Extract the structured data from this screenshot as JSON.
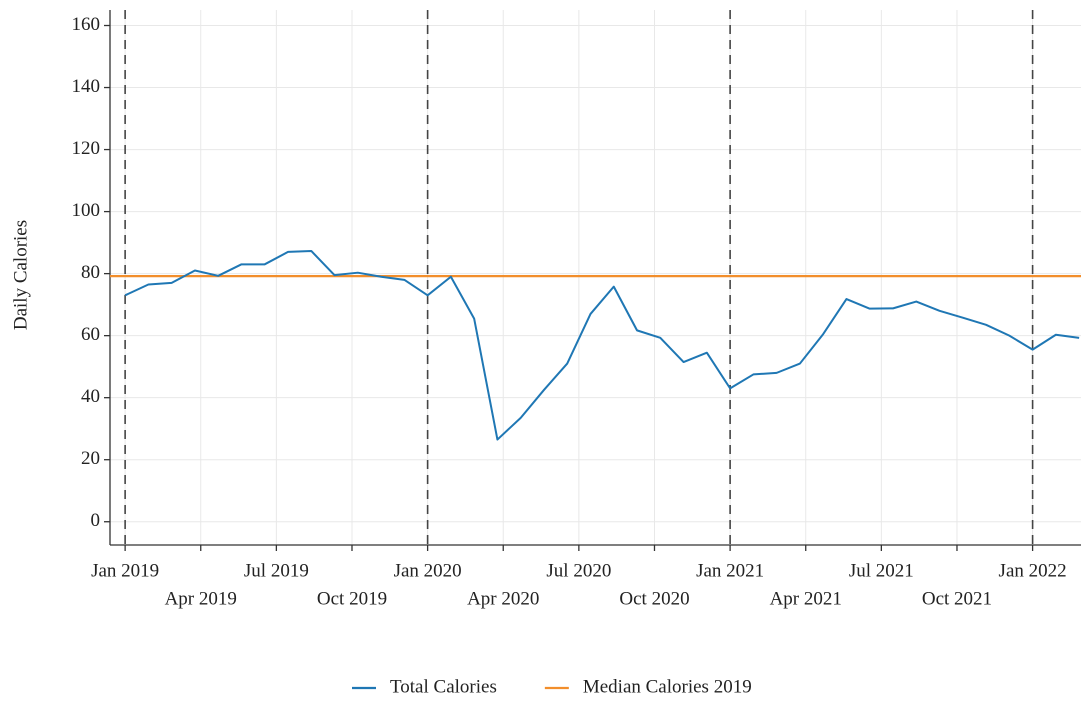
{
  "chart_data": {
    "type": "line",
    "y_label": "Daily Calories",
    "x": [
      2019.0,
      2019.0769,
      2019.1538,
      2019.2308,
      2019.3077,
      2019.3846,
      2019.4615,
      2019.5385,
      2019.6154,
      2019.6923,
      2019.7692,
      2019.8462,
      2019.9231,
      2020.0,
      2020.0769,
      2020.1538,
      2020.2308,
      2020.3077,
      2020.3846,
      2020.4615,
      2020.5385,
      2020.6154,
      2020.6923,
      2020.7692,
      2020.8462,
      2020.9231,
      2021.0,
      2021.0769,
      2021.1538,
      2021.2308,
      2021.3077,
      2021.3846,
      2021.4615,
      2021.5385,
      2021.6154,
      2021.6923,
      2021.7692,
      2021.8462,
      2021.9231,
      2022.0,
      2022.0769,
      2022.1538
    ],
    "series": [
      {
        "name": "Total Calories",
        "color": "#1f77b4",
        "values": [
          73,
          76.5,
          77,
          81,
          79.3,
          83,
          83,
          87,
          87.3,
          79.5,
          80.3,
          79,
          78,
          73,
          79,
          65.5,
          26.5,
          33.5,
          42.5,
          51,
          67,
          75.8,
          61.7,
          59.3,
          51.5,
          54.5,
          43,
          47.5,
          48,
          51,
          60.5,
          71.8,
          68.7,
          68.8,
          71,
          68,
          65.8,
          63.5,
          60,
          55.5,
          60.3,
          59.3
        ]
      }
    ],
    "reference_lines": [
      {
        "name": "Median Calories 2019",
        "color": "#f28e2b",
        "value": 79.2
      }
    ],
    "vlines": [
      2019,
      2020,
      2021,
      2022
    ],
    "xlim": [
      2018.95,
      2022.16
    ],
    "ylim": [
      -7.5,
      165
    ],
    "xticks": [
      {
        "value": 2019,
        "label": "Jan 2019"
      },
      {
        "value": 2019.25,
        "label": "Apr 2019"
      },
      {
        "value": 2019.5,
        "label": "Jul 2019"
      },
      {
        "value": 2019.75,
        "label": "Oct 2019"
      },
      {
        "value": 2020,
        "label": "Jan 2020"
      },
      {
        "value": 2020.25,
        "label": "Apr 2020"
      },
      {
        "value": 2020.5,
        "label": "Jul 2020"
      },
      {
        "value": 2020.75,
        "label": "Oct 2020"
      },
      {
        "value": 2021,
        "label": "Jan 2021"
      },
      {
        "value": 2021.25,
        "label": "Apr 2021"
      },
      {
        "value": 2021.5,
        "label": "Jul 2021"
      },
      {
        "value": 2021.75,
        "label": "Oct 2021"
      },
      {
        "value": 2022,
        "label": "Jan 2022"
      }
    ],
    "yticks": [
      0,
      20,
      40,
      60,
      80,
      100,
      120,
      140,
      160
    ],
    "grid": true,
    "legend": "bottom"
  }
}
